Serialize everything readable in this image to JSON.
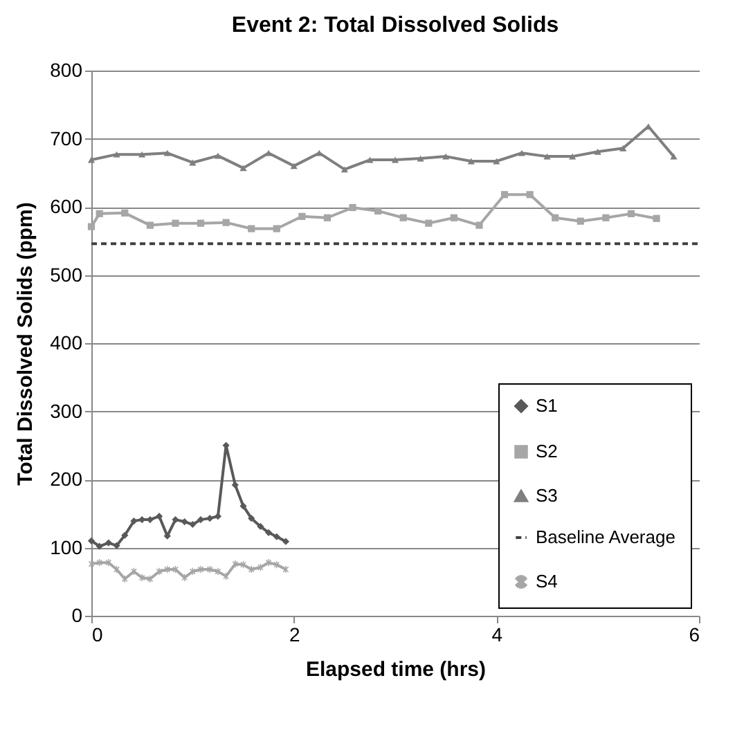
{
  "chart_data": {
    "type": "line",
    "title": "Event 2: Total Dissolved Solids",
    "xlabel": "Elapsed time (hrs)",
    "ylabel": "Total Dissolved Solids (ppm)",
    "xlim": [
      0,
      6
    ],
    "xticks": [
      0,
      2,
      4,
      6
    ],
    "ylim": [
      0,
      800
    ],
    "yticks": [
      0,
      100,
      200,
      300,
      400,
      500,
      600,
      700,
      800
    ],
    "grid": "y",
    "legend": "bottom right",
    "series": [
      {
        "name": "S1",
        "color": "#595959",
        "marker": "diamond",
        "x": [
          0,
          0.08,
          0.17,
          0.25,
          0.33,
          0.42,
          0.5,
          0.58,
          0.67,
          0.75,
          0.83,
          0.92,
          1,
          1.08,
          1.17,
          1.25,
          1.33,
          1.42,
          1.5,
          1.58,
          1.67,
          1.75,
          1.83,
          1.92
        ],
        "values": [
          110,
          102,
          107,
          103,
          118,
          139,
          141,
          141,
          146,
          117,
          141,
          138,
          134,
          141,
          143,
          146,
          250,
          192,
          161,
          143,
          131,
          122,
          116,
          109
        ]
      },
      {
        "name": "S2",
        "color": "#a6a6a6",
        "marker": "square",
        "x": [
          0,
          0.08,
          0.33,
          0.58,
          0.83,
          1.08,
          1.33,
          1.58,
          1.83,
          2.08,
          2.33,
          2.58,
          2.83,
          3.08,
          3.33,
          3.58,
          3.83,
          4.08,
          4.33,
          4.58,
          4.83,
          5.08,
          5.33,
          5.58
        ],
        "values": [
          571,
          590,
          591,
          573,
          576,
          576,
          577,
          568,
          568,
          586,
          584,
          599,
          594,
          584,
          576,
          584,
          573,
          618,
          618,
          584,
          579,
          584,
          590,
          583
        ]
      },
      {
        "name": "S3",
        "color": "#7f7f7f",
        "marker": "triangle",
        "x": [
          0,
          0.25,
          0.5,
          0.75,
          1,
          1.25,
          1.5,
          1.75,
          2,
          2.25,
          2.5,
          2.75,
          3,
          3.25,
          3.5,
          3.75,
          4,
          4.25,
          4.5,
          4.75,
          5,
          5.25,
          5.5,
          5.75
        ],
        "values": [
          669,
          677,
          677,
          679,
          665,
          675,
          657,
          679,
          660,
          679,
          655,
          669,
          669,
          671,
          674,
          667,
          667,
          679,
          674,
          674,
          681,
          686,
          718,
          674
        ]
      },
      {
        "name": "Baseline Average",
        "color": "#404040",
        "marker": "none",
        "line_style": "dashed",
        "x": [
          0,
          6
        ],
        "values": [
          546,
          546
        ]
      },
      {
        "name": "S4",
        "color": "#a6a6a6",
        "marker": "cross",
        "x": [
          0,
          0.08,
          0.17,
          0.25,
          0.33,
          0.42,
          0.5,
          0.58,
          0.67,
          0.75,
          0.83,
          0.92,
          1,
          1.08,
          1.17,
          1.25,
          1.33,
          1.42,
          1.5,
          1.58,
          1.67,
          1.75,
          1.83,
          1.92
        ],
        "values": [
          76,
          78,
          78,
          68,
          54,
          65,
          56,
          54,
          65,
          68,
          68,
          56,
          65,
          68,
          68,
          65,
          58,
          76,
          75,
          68,
          71,
          78,
          75,
          68
        ]
      }
    ]
  }
}
